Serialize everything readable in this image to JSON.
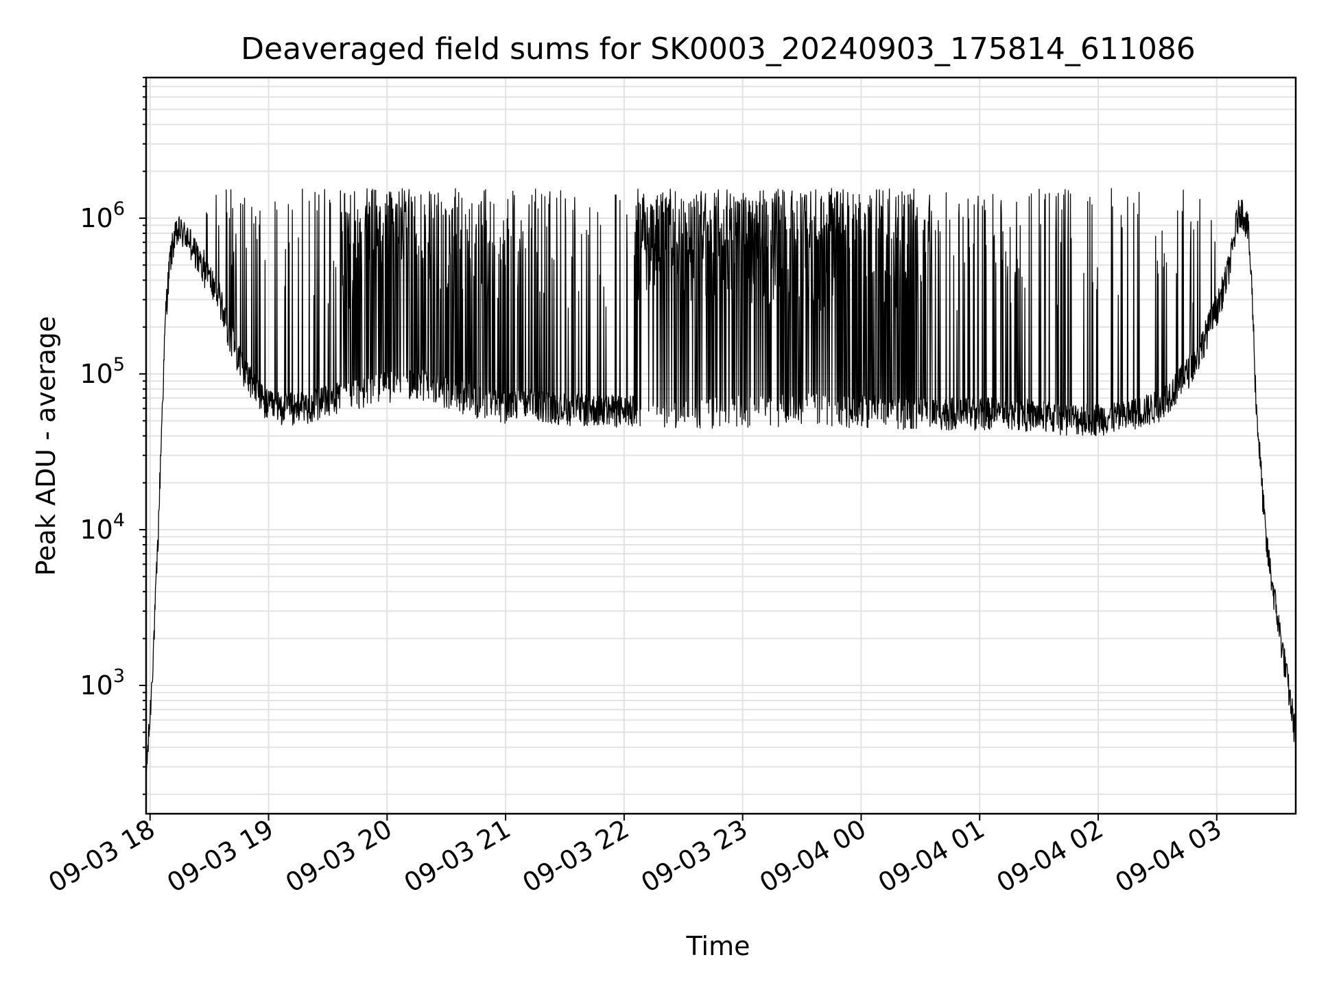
{
  "chart_data": {
    "type": "line",
    "title": "Deaveraged field sums for SK0003_20240903_175814_611086",
    "xlabel": "Time",
    "ylabel": "Peak ADU - average",
    "yscale": "log",
    "xlim": [
      "2024-09-03 17:58",
      "2024-09-04 03:40"
    ],
    "ylim": [
      150,
      8000000
    ],
    "grid": "major and minor",
    "legend": "none",
    "x_ticks": [
      "09-03 18",
      "09-03 19",
      "09-03 20",
      "09-03 21",
      "09-03 22",
      "09-03 23",
      "09-04 00",
      "09-04 01",
      "09-04 02",
      "09-04 03"
    ],
    "y_ticks": [
      {
        "base": "10",
        "exp": "3",
        "value": 1000
      },
      {
        "base": "10",
        "exp": "4",
        "value": 10000
      },
      {
        "base": "10",
        "exp": "5",
        "value": 100000
      },
      {
        "base": "10",
        "exp": "6",
        "value": 1000000
      }
    ],
    "series": [
      {
        "color": "#000000",
        "description_of_data": "Baseline envelope with frequent spikes up to ~1.5e6 between 18:20 and 02:30",
        "x": [
          "2024-09-03 17:58",
          "2024-09-03 18:00",
          "2024-09-03 18:02",
          "2024-09-03 18:04",
          "2024-09-03 18:06",
          "2024-09-03 18:08",
          "2024-09-03 18:10",
          "2024-09-03 18:12",
          "2024-09-03 18:15",
          "2024-09-03 18:20",
          "2024-09-03 18:25",
          "2024-09-03 18:30",
          "2024-09-03 18:35",
          "2024-09-03 18:40",
          "2024-09-03 18:45",
          "2024-09-03 18:50",
          "2024-09-03 18:55",
          "2024-09-03 19:00",
          "2024-09-03 19:10",
          "2024-09-03 19:20",
          "2024-09-03 19:30",
          "2024-09-03 19:40",
          "2024-09-03 19:50",
          "2024-09-03 20:00",
          "2024-09-03 20:15",
          "2024-09-03 20:30",
          "2024-09-03 20:45",
          "2024-09-03 21:00",
          "2024-09-03 21:15",
          "2024-09-03 21:30",
          "2024-09-03 21:45",
          "2024-09-03 22:00",
          "2024-09-03 22:15",
          "2024-09-03 22:30",
          "2024-09-03 22:45",
          "2024-09-03 23:00",
          "2024-09-03 23:15",
          "2024-09-03 23:30",
          "2024-09-03 23:45",
          "2024-09-04 00:00",
          "2024-09-04 00:15",
          "2024-09-04 00:30",
          "2024-09-04 00:45",
          "2024-09-04 01:00",
          "2024-09-04 01:15",
          "2024-09-04 01:30",
          "2024-09-04 01:45",
          "2024-09-04 02:00",
          "2024-09-04 02:15",
          "2024-09-04 02:30",
          "2024-09-04 02:40",
          "2024-09-04 02:50",
          "2024-09-04 02:55",
          "2024-09-04 03:00",
          "2024-09-04 03:05",
          "2024-09-04 03:08",
          "2024-09-04 03:10",
          "2024-09-04 03:12",
          "2024-09-04 03:14",
          "2024-09-04 03:16",
          "2024-09-04 03:18",
          "2024-09-04 03:20",
          "2024-09-04 03:25",
          "2024-09-04 03:30",
          "2024-09-04 03:35",
          "2024-09-04 03:40"
        ],
        "y": [
          250,
          600,
          2000,
          8000,
          50000,
          250000,
          500000,
          700000,
          800000,
          700000,
          500000,
          400000,
          300000,
          180000,
          120000,
          90000,
          70000,
          60000,
          58000,
          60000,
          65000,
          70000,
          75000,
          80000,
          85000,
          75000,
          65000,
          60000,
          62000,
          58000,
          57000,
          56000,
          55000,
          55000,
          55000,
          56000,
          57000,
          58000,
          57000,
          56000,
          55000,
          55000,
          54000,
          54000,
          55000,
          52000,
          50000,
          50000,
          52000,
          60000,
          80000,
          120000,
          180000,
          250000,
          400000,
          600000,
          900000,
          1100000,
          1000000,
          800000,
          300000,
          60000,
          8000,
          3000,
          1200,
          450
        ]
      }
    ]
  }
}
